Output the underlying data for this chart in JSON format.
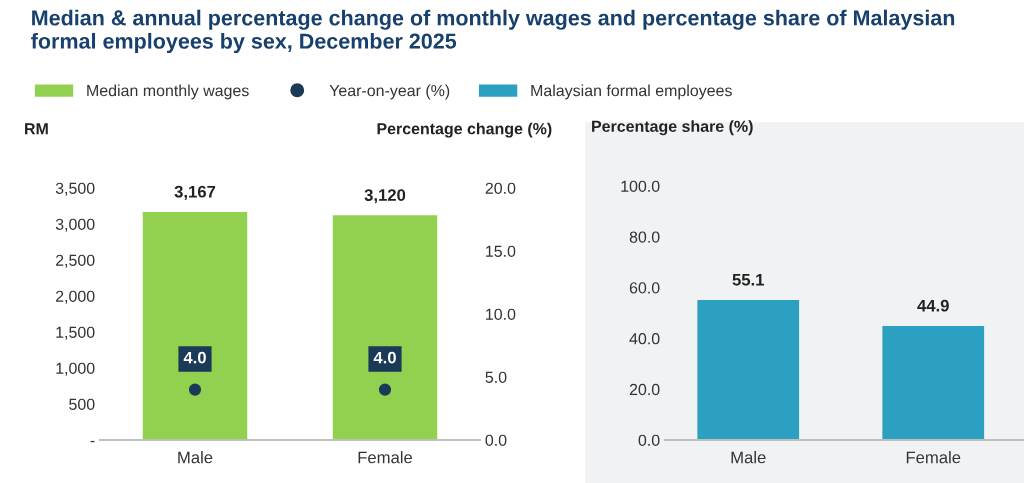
{
  "chart_data": [
    {
      "type": "bar",
      "title": "Median & annual percentage change of monthly wages and percentage share of Malaysian formal employees by sex, December 2025",
      "ylabel": "RM",
      "y2label": "Percentage change (%)",
      "categories": [
        "Male",
        "Female"
      ],
      "series": [
        {
          "name": "Median monthly wages",
          "type": "bar",
          "color": "#92d050",
          "values": [
            3167,
            3120
          ],
          "value_labels": [
            "3,167",
            "3,120"
          ]
        },
        {
          "name": "Year-on-year (%)",
          "type": "scatter",
          "axis": "y2",
          "color": "#1b3a57",
          "values": [
            4.0,
            4.0
          ],
          "value_labels": [
            "4.0",
            "4.0"
          ]
        }
      ],
      "ylim": [
        0,
        3500
      ],
      "yticks": [
        {
          "value": 0,
          "label": "-"
        },
        {
          "value": 500,
          "label": "500"
        },
        {
          "value": 1000,
          "label": "1,000"
        },
        {
          "value": 1500,
          "label": "1,500"
        },
        {
          "value": 2000,
          "label": "2,000"
        },
        {
          "value": 2500,
          "label": "2,500"
        },
        {
          "value": 3000,
          "label": "3,000"
        },
        {
          "value": 3500,
          "label": "3,500"
        }
      ],
      "y2lim": [
        0,
        20
      ],
      "y2ticks": [
        {
          "value": 0,
          "label": "0.0"
        },
        {
          "value": 5,
          "label": "5.0"
        },
        {
          "value": 10,
          "label": "10.0"
        },
        {
          "value": 15,
          "label": "15.0"
        },
        {
          "value": 20,
          "label": "20.0"
        }
      ],
      "marker": "circle",
      "grid": false,
      "legend": "top"
    },
    {
      "type": "bar",
      "ylabel": "Percentage share (%)",
      "categories": [
        "Male",
        "Female"
      ],
      "series": [
        {
          "name": "Malaysian formal employees",
          "color": "#2ca0c0",
          "values": [
            55.1,
            44.9
          ],
          "value_labels": [
            "55.1",
            "44.9"
          ]
        }
      ],
      "ylim": [
        0,
        100
      ],
      "yticks": [
        {
          "value": 0,
          "label": "0.0"
        },
        {
          "value": 20,
          "label": "20.0"
        },
        {
          "value": 40,
          "label": "40.0"
        },
        {
          "value": 60,
          "label": "60.0"
        },
        {
          "value": 80,
          "label": "80.0"
        },
        {
          "value": 100,
          "label": "100.0"
        }
      ],
      "grid": false
    }
  ]
}
